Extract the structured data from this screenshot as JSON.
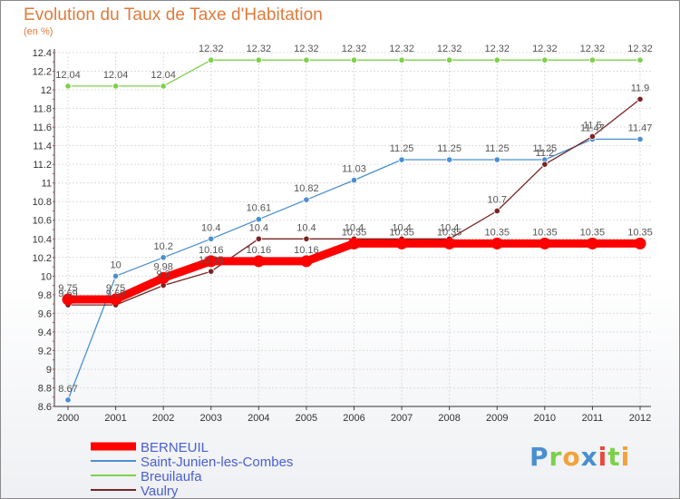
{
  "chart_data": {
    "type": "line",
    "title": "Evolution du Taux de Taxe d'Habitation",
    "subtitle": "(en %)",
    "x": [
      "2000",
      "2001",
      "2002",
      "2003",
      "2004",
      "2005",
      "2006",
      "2007",
      "2008",
      "2009",
      "2010",
      "2011",
      "2012"
    ],
    "ylim": [
      8.6,
      12.4
    ],
    "yticks": [
      "8.6",
      "8.8",
      "9",
      "9.2",
      "9.4",
      "9.6",
      "9.8",
      "10",
      "10.2",
      "10.4",
      "10.6",
      "10.8",
      "11",
      "11.2",
      "11.4",
      "11.6",
      "11.8",
      "12",
      "12.2",
      "12.4"
    ],
    "grid": true,
    "legend_position": "bottom-left",
    "series": [
      {
        "name": "BERNEUIL",
        "color": "#ff0000",
        "values": [
          9.75,
          9.75,
          9.98,
          10.16,
          10.16,
          10.16,
          10.35,
          10.35,
          10.35,
          10.35,
          10.35,
          10.35,
          10.35
        ],
        "labels": [
          "9.75",
          "9.75",
          "9.98",
          "10.16",
          "10.16",
          "10.16",
          "10.35",
          "10.35",
          "10.35",
          "10.35",
          "10.35",
          "10.35",
          "10.35"
        ]
      },
      {
        "name": "Saint-Junien-les-Combes",
        "color": "#4a8fd0",
        "values": [
          8.67,
          10,
          10.2,
          10.4,
          10.61,
          10.82,
          11.03,
          11.25,
          11.25,
          11.25,
          11.25,
          11.47,
          11.47
        ],
        "labels": [
          "8.67",
          "10",
          "10.2",
          "10.4",
          "10.61",
          "10.82",
          "11.03",
          "11.25",
          "11.25",
          "11.25",
          "11.25",
          "11.47",
          "11.47"
        ]
      },
      {
        "name": "Breuilaufa",
        "color": "#7ed04b",
        "values": [
          12.04,
          12.04,
          12.04,
          12.32,
          12.32,
          12.32,
          12.32,
          12.32,
          12.32,
          12.32,
          12.32,
          12.32,
          12.32
        ],
        "labels": [
          "12.04",
          "12.04",
          "12.04",
          "12.32",
          "12.32",
          "12.32",
          "12.32",
          "12.32",
          "12.32",
          "12.32",
          "12.32",
          "12.32",
          "12.32"
        ]
      },
      {
        "name": "Vaulry",
        "color": "#7a2323",
        "values": [
          9.69,
          9.69,
          9.9,
          10.05,
          10.4,
          10.4,
          10.4,
          10.4,
          10.4,
          10.7,
          11.2,
          11.5,
          11.9
        ],
        "labels": [
          "9.69",
          "9.69",
          "9.9",
          "10.05",
          "10.4",
          "10.4",
          "10.4",
          "10.4",
          "10.4",
          "10.7",
          "11.2",
          "11.5",
          "11.9"
        ]
      }
    ]
  },
  "logo": {
    "letters": [
      "P",
      "r",
      "o",
      "x",
      "i",
      "t",
      "i"
    ],
    "colors": [
      "#4a8fd0",
      "#7ed04b",
      "#f3a23a",
      "#4a8fd0",
      "#e64b3c",
      "#7ed04b",
      "#f3a23a"
    ]
  }
}
